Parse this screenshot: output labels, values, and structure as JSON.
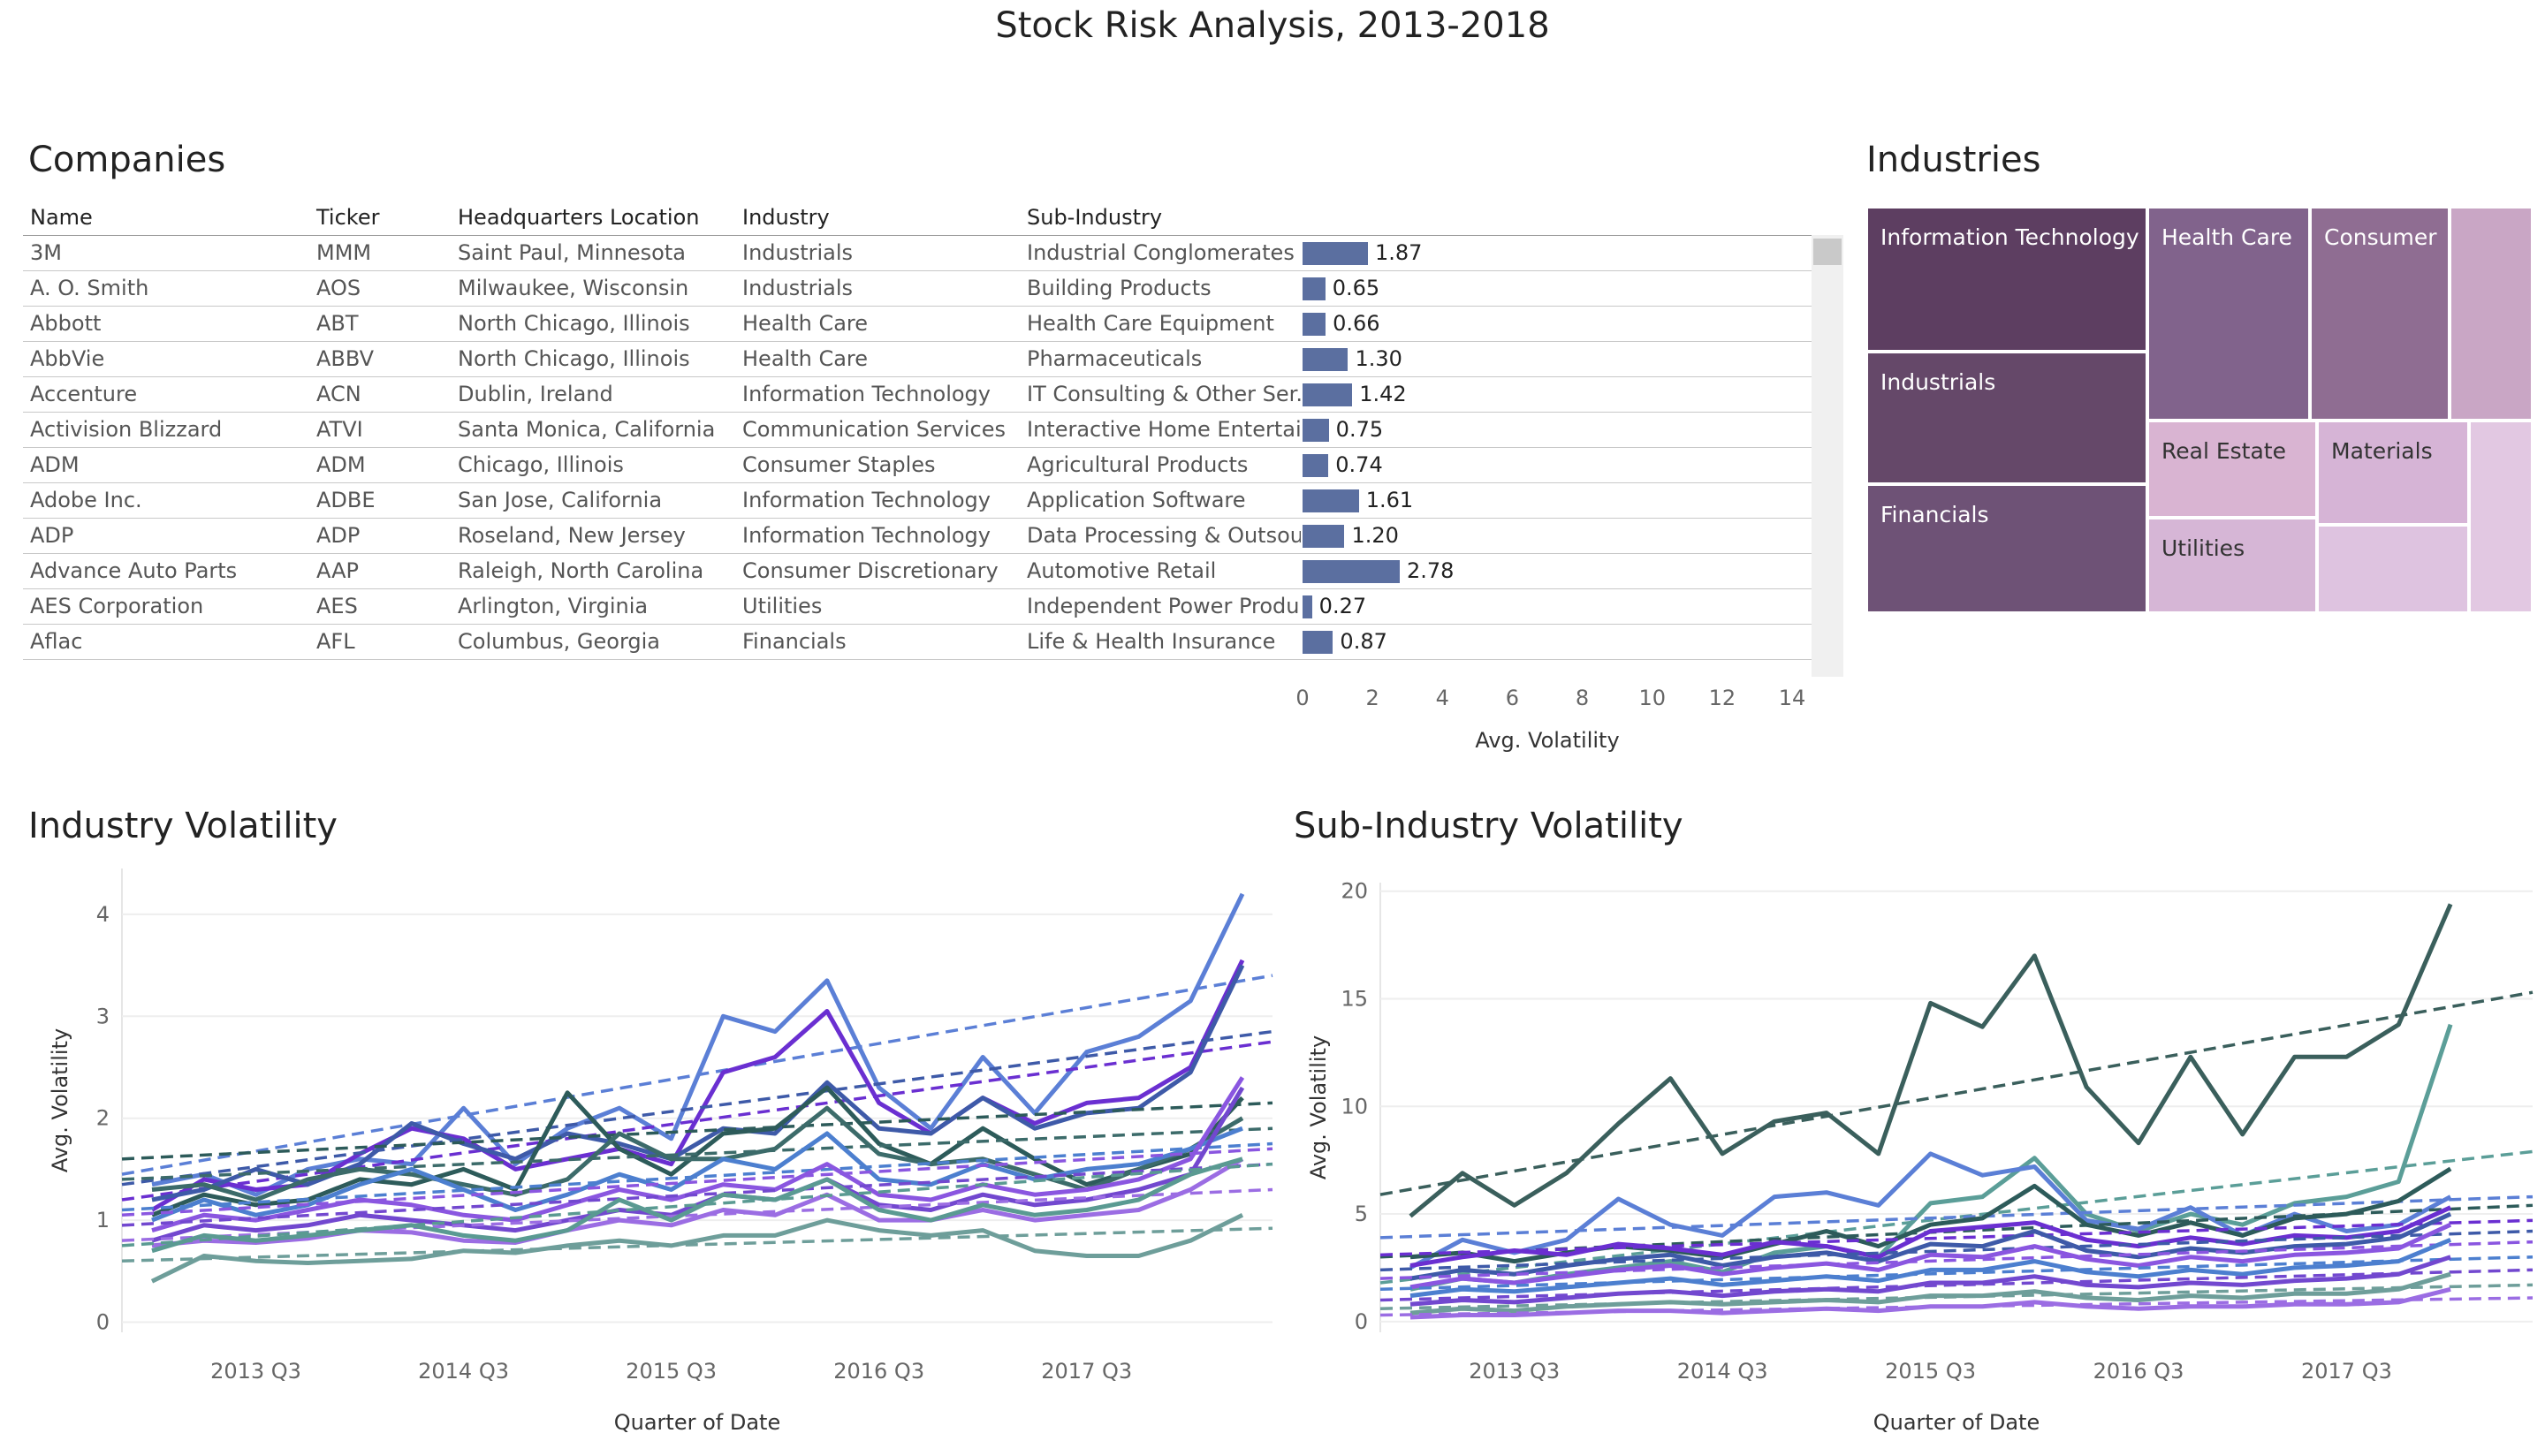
{
  "title": "Stock Risk Analysis, 2013-2018",
  "companies": {
    "title": "Companies",
    "columns": [
      "Name",
      "Ticker",
      "Headquarters Location",
      "Industry",
      "Sub-Industry"
    ],
    "rows": [
      {
        "name": "3M",
        "ticker": "MMM",
        "hq": "Saint Paul, Minnesota",
        "industry": "Industrials",
        "sub": "Industrial Conglomerates",
        "vol": 1.87,
        "vol_label": "1.87"
      },
      {
        "name": "A. O. Smith",
        "ticker": "AOS",
        "hq": "Milwaukee, Wisconsin",
        "industry": "Industrials",
        "sub": "Building Products",
        "vol": 0.65,
        "vol_label": "0.65"
      },
      {
        "name": "Abbott",
        "ticker": "ABT",
        "hq": "North Chicago, Illinois",
        "industry": "Health Care",
        "sub": "Health Care Equipment",
        "vol": 0.66,
        "vol_label": "0.66"
      },
      {
        "name": "AbbVie",
        "ticker": "ABBV",
        "hq": "North Chicago, Illinois",
        "industry": "Health Care",
        "sub": "Pharmaceuticals",
        "vol": 1.3,
        "vol_label": "1.30"
      },
      {
        "name": "Accenture",
        "ticker": "ACN",
        "hq": "Dublin, Ireland",
        "industry": "Information Technology",
        "sub": "IT Consulting & Other Ser..",
        "vol": 1.42,
        "vol_label": "1.42"
      },
      {
        "name": "Activision Blizzard",
        "ticker": "ATVI",
        "hq": "Santa Monica, California",
        "industry": "Communication Services",
        "sub": "Interactive Home Entertai..",
        "vol": 0.75,
        "vol_label": "0.75"
      },
      {
        "name": "ADM",
        "ticker": "ADM",
        "hq": "Chicago, Illinois",
        "industry": "Consumer Staples",
        "sub": "Agricultural Products",
        "vol": 0.74,
        "vol_label": "0.74"
      },
      {
        "name": "Adobe Inc.",
        "ticker": "ADBE",
        "hq": "San Jose, California",
        "industry": "Information Technology",
        "sub": "Application Software",
        "vol": 1.61,
        "vol_label": "1.61"
      },
      {
        "name": "ADP",
        "ticker": "ADP",
        "hq": "Roseland, New Jersey",
        "industry": "Information Technology",
        "sub": "Data Processing & Outsou..",
        "vol": 1.2,
        "vol_label": "1.20"
      },
      {
        "name": "Advance Auto Parts",
        "ticker": "AAP",
        "hq": "Raleigh, North Carolina",
        "industry": "Consumer Discretionary",
        "sub": "Automotive Retail",
        "vol": 2.78,
        "vol_label": "2.78"
      },
      {
        "name": "AES Corporation",
        "ticker": "AES",
        "hq": "Arlington, Virginia",
        "industry": "Utilities",
        "sub": "Independent Power Produ..",
        "vol": 0.27,
        "vol_label": "0.27"
      },
      {
        "name": "Aflac",
        "ticker": "AFL",
        "hq": "Columbus, Georgia",
        "industry": "Financials",
        "sub": "Life & Health Insurance",
        "vol": 0.87,
        "vol_label": "0.87"
      }
    ],
    "axis": {
      "label": "Avg. Volatility",
      "ticks": [
        "0",
        "2",
        "4",
        "6",
        "8",
        "10",
        "12",
        "14"
      ],
      "max": 14
    }
  },
  "industries": {
    "title": "Industries",
    "cells": [
      {
        "label": "Information Technology",
        "color": "#5d3e61"
      },
      {
        "label": "Industrials",
        "color": "#654869"
      },
      {
        "label": "Financials",
        "color": "#6e5276"
      },
      {
        "label": "Health Care",
        "color": "#81638c"
      },
      {
        "label": "Consumer",
        "color": "#8f6d92"
      },
      {
        "label": "",
        "color": "#c9a6c5"
      },
      {
        "label": "Real Estate",
        "color": "#d9b4d2"
      },
      {
        "label": "Materials",
        "color": "#d6b4d6"
      },
      {
        "label": "Utilities",
        "color": "#d6b6d6"
      },
      {
        "label": "",
        "color": "#dec3e0"
      },
      {
        "label": "",
        "color": "#e2c8e2"
      }
    ]
  },
  "chart_data": [
    {
      "type": "line",
      "title": "Industry Volatility",
      "xlabel": "Quarter of Date",
      "ylabel": "Avg. Volatility",
      "xticks": [
        "2013 Q3",
        "2014 Q3",
        "2015 Q3",
        "2016 Q3",
        "2017 Q3"
      ],
      "yticks": [
        "0",
        "1",
        "2",
        "3",
        "4"
      ],
      "ylim": [
        -0.1,
        4.45
      ],
      "x": [
        "2013 Q1",
        "2013 Q2",
        "2013 Q3",
        "2013 Q4",
        "2014 Q1",
        "2014 Q2",
        "2014 Q3",
        "2014 Q4",
        "2015 Q1",
        "2015 Q2",
        "2015 Q3",
        "2015 Q4",
        "2016 Q1",
        "2016 Q2",
        "2016 Q3",
        "2016 Q4",
        "2017 Q1",
        "2017 Q2",
        "2017 Q3",
        "2017 Q4",
        "2018 Q1",
        "2018 Q2"
      ],
      "trend_lines": true,
      "series": [
        {
          "color": "#5b7fd6",
          "values": [
            1.35,
            1.45,
            1.25,
            1.5,
            1.6,
            1.55,
            2.1,
            1.55,
            1.9,
            2.1,
            1.8,
            3.0,
            2.85,
            3.35,
            2.3,
            1.9,
            2.6,
            2.05,
            2.65,
            2.8,
            3.15,
            4.2
          ],
          "trend": [
            1.45,
            3.4
          ]
        },
        {
          "color": "#6a2fd1",
          "values": [
            1.1,
            1.4,
            1.3,
            1.35,
            1.65,
            1.9,
            1.8,
            1.5,
            1.6,
            1.7,
            1.55,
            2.45,
            2.6,
            3.05,
            2.15,
            1.85,
            2.2,
            1.95,
            2.15,
            2.2,
            2.5,
            3.55
          ],
          "trend": [
            1.2,
            2.75
          ]
        },
        {
          "color": "#3e5aa8",
          "values": [
            1.2,
            1.3,
            1.5,
            1.35,
            1.55,
            1.95,
            1.75,
            1.6,
            1.85,
            1.75,
            1.6,
            1.9,
            1.85,
            2.35,
            1.9,
            1.85,
            2.2,
            1.9,
            2.05,
            2.1,
            2.45,
            3.5
          ],
          "trend": [
            1.35,
            2.85
          ]
        },
        {
          "color": "#2d5b5a",
          "values": [
            1.05,
            1.25,
            1.15,
            1.2,
            1.4,
            1.35,
            1.5,
            1.3,
            2.25,
            1.7,
            1.45,
            1.85,
            1.9,
            2.3,
            1.75,
            1.55,
            1.9,
            1.6,
            1.35,
            1.5,
            1.65,
            2.2
          ],
          "trend": [
            1.6,
            2.15
          ]
        },
        {
          "color": "#3c6b6a",
          "values": [
            1.3,
            1.35,
            1.2,
            1.4,
            1.5,
            1.45,
            1.35,
            1.25,
            1.4,
            1.85,
            1.6,
            1.6,
            1.7,
            2.1,
            1.65,
            1.55,
            1.6,
            1.45,
            1.3,
            1.5,
            1.7,
            2.0
          ],
          "trend": [
            1.4,
            1.9
          ]
        },
        {
          "color": "#4c7fcf",
          "values": [
            1.0,
            1.2,
            1.05,
            1.15,
            1.35,
            1.5,
            1.3,
            1.1,
            1.25,
            1.45,
            1.3,
            1.6,
            1.5,
            1.85,
            1.4,
            1.35,
            1.55,
            1.4,
            1.5,
            1.55,
            1.7,
            1.9
          ],
          "trend": [
            1.1,
            1.75
          ]
        },
        {
          "color": "#8a56e0",
          "values": [
            0.9,
            1.05,
            1.0,
            1.1,
            1.2,
            1.15,
            1.05,
            1.0,
            1.15,
            1.3,
            1.2,
            1.35,
            1.3,
            1.55,
            1.25,
            1.2,
            1.35,
            1.25,
            1.3,
            1.4,
            1.6,
            2.4
          ],
          "trend": [
            1.05,
            1.7
          ]
        },
        {
          "color": "#7248cf",
          "values": [
            0.8,
            0.95,
            0.9,
            0.95,
            1.05,
            1.0,
            0.95,
            0.9,
            1.0,
            1.1,
            1.05,
            1.25,
            1.2,
            1.4,
            1.15,
            1.1,
            1.25,
            1.15,
            1.2,
            1.3,
            1.45,
            2.3
          ],
          "trend": [
            0.95,
            1.55
          ]
        },
        {
          "color": "#9b6de3",
          "values": [
            0.75,
            0.8,
            0.78,
            0.82,
            0.9,
            0.88,
            0.8,
            0.78,
            0.9,
            1.0,
            0.95,
            1.1,
            1.05,
            1.25,
            1.0,
            1.0,
            1.1,
            1.0,
            1.05,
            1.1,
            1.3,
            1.6
          ],
          "trend": [
            0.8,
            1.3
          ]
        },
        {
          "color": "#5a9a92",
          "values": [
            0.7,
            0.85,
            0.8,
            0.85,
            0.9,
            0.95,
            0.85,
            0.8,
            0.9,
            1.2,
            1.0,
            1.25,
            1.2,
            1.4,
            1.1,
            1.0,
            1.15,
            1.05,
            1.1,
            1.2,
            1.45,
            1.6
          ],
          "trend": [
            0.75,
            1.55
          ]
        },
        {
          "color": "#6e9e9a",
          "values": [
            0.4,
            0.65,
            0.6,
            0.58,
            0.6,
            0.62,
            0.7,
            0.68,
            0.75,
            0.8,
            0.75,
            0.85,
            0.85,
            1.0,
            0.9,
            0.85,
            0.9,
            0.7,
            0.65,
            0.65,
            0.8,
            1.05
          ],
          "trend": [
            0.6,
            0.92
          ]
        }
      ]
    },
    {
      "type": "line",
      "title": "Sub-Industry Volatility",
      "xlabel": "Quarter of Date",
      "ylabel": "Avg. Volatility",
      "xticks": [
        "2013 Q3",
        "2014 Q3",
        "2015 Q3",
        "2016 Q3",
        "2017 Q3"
      ],
      "yticks": [
        "0",
        "5",
        "10",
        "15",
        "20"
      ],
      "ylim": [
        -0.5,
        20.4
      ],
      "x": [
        "2013 Q1",
        "2013 Q2",
        "2013 Q3",
        "2013 Q4",
        "2014 Q1",
        "2014 Q2",
        "2014 Q3",
        "2014 Q4",
        "2015 Q1",
        "2015 Q2",
        "2015 Q3",
        "2015 Q4",
        "2016 Q1",
        "2016 Q2",
        "2016 Q3",
        "2016 Q4",
        "2017 Q1",
        "2017 Q2",
        "2017 Q3",
        "2017 Q4",
        "2018 Q1",
        "2018 Q2"
      ],
      "trend_lines": true,
      "series": [
        {
          "color": "#3a5f5c",
          "values": [
            4.9,
            6.9,
            5.4,
            6.9,
            9.2,
            11.3,
            7.8,
            9.3,
            9.7,
            7.8,
            14.8,
            13.7,
            17.0,
            10.9,
            8.3,
            12.3,
            8.7,
            12.3,
            12.3,
            13.8,
            19.4,
            null
          ],
          "trend": [
            5.9,
            15.3
          ]
        },
        {
          "color": "#5b9e98",
          "values": [
            1.5,
            2.0,
            1.8,
            2.2,
            2.5,
            2.8,
            2.3,
            3.2,
            3.5,
            3.0,
            5.5,
            5.8,
            7.6,
            5.0,
            4.2,
            5.0,
            4.5,
            5.5,
            5.8,
            6.5,
            13.8,
            null
          ],
          "trend": [
            1.8,
            7.9
          ]
        },
        {
          "color": "#5b7fd6",
          "values": [
            2.5,
            3.8,
            3.2,
            3.8,
            5.7,
            4.5,
            4.0,
            5.8,
            6.0,
            5.4,
            7.8,
            6.8,
            7.2,
            4.7,
            4.3,
            5.3,
            4.0,
            5.0,
            4.2,
            4.5,
            5.8,
            null
          ],
          "trend": [
            3.9,
            5.8
          ]
        },
        {
          "color": "#2d5b5a",
          "values": [
            3.0,
            3.2,
            2.8,
            3.2,
            3.5,
            3.3,
            3.0,
            3.6,
            4.2,
            3.5,
            4.5,
            4.8,
            6.3,
            4.5,
            4.0,
            4.6,
            4.0,
            4.8,
            5.0,
            5.6,
            7.1,
            null
          ],
          "trend": [
            3.0,
            5.4
          ]
        },
        {
          "color": "#6a2fd1",
          "values": [
            2.6,
            3.0,
            3.3,
            3.1,
            3.6,
            3.4,
            3.1,
            3.7,
            3.5,
            3.0,
            4.2,
            4.4,
            4.6,
            3.8,
            3.5,
            3.9,
            3.6,
            4.0,
            3.9,
            4.2,
            5.3,
            null
          ],
          "trend": [
            3.1,
            4.7
          ]
        },
        {
          "color": "#3e5aa8",
          "values": [
            2.0,
            2.4,
            2.2,
            2.6,
            2.9,
            3.1,
            2.6,
            3.0,
            3.2,
            2.8,
            3.6,
            3.5,
            4.2,
            3.3,
            3.0,
            3.4,
            3.2,
            3.5,
            3.6,
            3.9,
            5.0,
            null
          ],
          "trend": [
            2.4,
            4.2
          ]
        },
        {
          "color": "#8a56e0",
          "values": [
            1.6,
            2.0,
            1.8,
            2.1,
            2.4,
            2.6,
            2.2,
            2.5,
            2.7,
            2.4,
            3.1,
            3.0,
            3.5,
            2.9,
            2.6,
            3.0,
            2.8,
            3.1,
            3.2,
            3.4,
            4.5,
            null
          ],
          "trend": [
            2.0,
            3.7
          ]
        },
        {
          "color": "#4c7fcf",
          "values": [
            1.2,
            1.5,
            1.4,
            1.6,
            1.8,
            2.0,
            1.7,
            1.9,
            2.1,
            1.9,
            2.4,
            2.4,
            2.8,
            2.3,
            2.1,
            2.4,
            2.2,
            2.5,
            2.6,
            2.8,
            3.8,
            null
          ],
          "trend": [
            1.5,
            3.0
          ]
        },
        {
          "color": "#7248cf",
          "values": [
            0.8,
            1.0,
            0.9,
            1.1,
            1.3,
            1.4,
            1.2,
            1.4,
            1.5,
            1.4,
            1.8,
            1.8,
            2.1,
            1.7,
            1.6,
            1.8,
            1.7,
            1.9,
            2.0,
            2.2,
            3.0,
            null
          ],
          "trend": [
            1.0,
            2.4
          ]
        },
        {
          "color": "#6e9e9a",
          "values": [
            0.4,
            0.6,
            0.5,
            0.7,
            0.8,
            0.9,
            0.8,
            0.9,
            1.0,
            0.9,
            1.2,
            1.2,
            1.4,
            1.1,
            1.0,
            1.2,
            1.1,
            1.3,
            1.3,
            1.5,
            2.2,
            null
          ],
          "trend": [
            0.6,
            1.7
          ]
        },
        {
          "color": "#9b6de3",
          "values": [
            0.2,
            0.3,
            0.3,
            0.4,
            0.5,
            0.5,
            0.4,
            0.5,
            0.6,
            0.5,
            0.7,
            0.7,
            0.9,
            0.7,
            0.6,
            0.7,
            0.7,
            0.8,
            0.8,
            0.9,
            1.5,
            null
          ],
          "trend": [
            0.3,
            1.1
          ]
        }
      ]
    }
  ]
}
